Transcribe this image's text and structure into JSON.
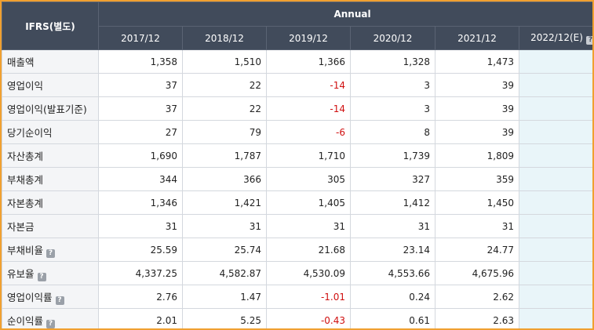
{
  "header": {
    "corner_label": "IFRS(별도)",
    "group_label": "Annual",
    "periods": [
      "2017/12",
      "2018/12",
      "2019/12",
      "2020/12",
      "2021/12",
      "2022/12(E)"
    ],
    "help_glyph": "?"
  },
  "rows": [
    {
      "label": "매출액",
      "help": false,
      "values": [
        "1,358",
        "1,510",
        "1,366",
        "1,328",
        "1,473",
        ""
      ]
    },
    {
      "label": "영업이익",
      "help": false,
      "values": [
        "37",
        "22",
        "-14",
        "3",
        "39",
        ""
      ]
    },
    {
      "label": "영업이익(발표기준)",
      "help": false,
      "values": [
        "37",
        "22",
        "-14",
        "3",
        "39",
        ""
      ]
    },
    {
      "label": "당기순이익",
      "help": false,
      "values": [
        "27",
        "79",
        "-6",
        "8",
        "39",
        ""
      ]
    },
    {
      "label": "자산총계",
      "help": false,
      "values": [
        "1,690",
        "1,787",
        "1,710",
        "1,739",
        "1,809",
        ""
      ]
    },
    {
      "label": "부채총계",
      "help": false,
      "values": [
        "344",
        "366",
        "305",
        "327",
        "359",
        ""
      ]
    },
    {
      "label": "자본총계",
      "help": false,
      "values": [
        "1,346",
        "1,421",
        "1,405",
        "1,412",
        "1,450",
        ""
      ]
    },
    {
      "label": "자본금",
      "help": false,
      "values": [
        "31",
        "31",
        "31",
        "31",
        "31",
        ""
      ]
    },
    {
      "label": "부채비율",
      "help": true,
      "values": [
        "25.59",
        "25.74",
        "21.68",
        "23.14",
        "24.77",
        ""
      ]
    },
    {
      "label": "유보율",
      "help": true,
      "values": [
        "4,337.25",
        "4,582.87",
        "4,530.09",
        "4,553.66",
        "4,675.96",
        ""
      ]
    },
    {
      "label": "영업이익률",
      "help": true,
      "values": [
        "2.76",
        "1.47",
        "-1.01",
        "0.24",
        "2.62",
        ""
      ]
    },
    {
      "label": "순이익률",
      "help": true,
      "values": [
        "2.01",
        "5.25",
        "-0.43",
        "0.61",
        "2.63",
        ""
      ]
    }
  ],
  "colors": {
    "header_bg": "#414b5b",
    "negative": "#d01010",
    "estimate_bg": "#e9f5f9",
    "label_bg": "#f4f5f7",
    "frame_border": "#f0a030"
  },
  "icons": {
    "help": "help-icon"
  }
}
